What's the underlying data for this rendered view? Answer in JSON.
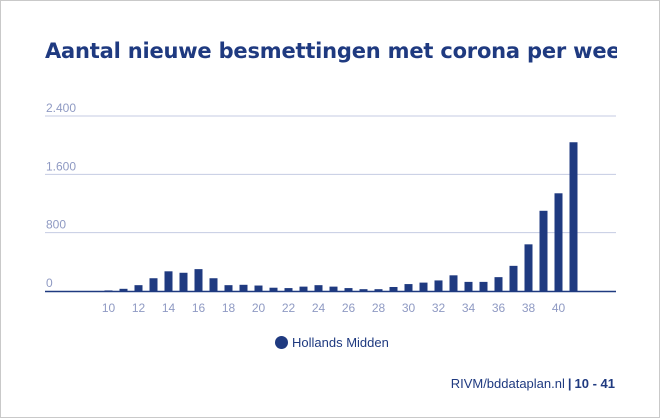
{
  "chart_data": {
    "type": "bar",
    "title": "Aantal nieuwe besmettingen met corona per week in Hollands Midden",
    "xlabel": "",
    "ylabel": "",
    "ylim": [
      0,
      2400
    ],
    "y_ticks": [
      {
        "value": 0,
        "label": "0"
      },
      {
        "value": 800,
        "label": "800"
      },
      {
        "value": 1600,
        "label": "1.600"
      },
      {
        "value": 2400,
        "label": "2.400"
      }
    ],
    "x_tick_labels": [
      "10",
      "12",
      "14",
      "16",
      "18",
      "20",
      "22",
      "24",
      "26",
      "28",
      "30",
      "32",
      "34",
      "36",
      "38",
      "40"
    ],
    "categories": [
      "9",
      "10",
      "11",
      "12",
      "13",
      "14",
      "15",
      "16",
      "17",
      "18",
      "19",
      "20",
      "21",
      "22",
      "23",
      "24",
      "25",
      "26",
      "27",
      "28",
      "29",
      "30",
      "31",
      "32",
      "33",
      "34",
      "35",
      "36",
      "37",
      "38",
      "39",
      "40",
      "41"
    ],
    "series": [
      {
        "name": "Hollands Midden",
        "color": "#1f3a80",
        "values": [
          0,
          8,
          30,
          80,
          175,
          270,
          250,
          300,
          175,
          80,
          85,
          75,
          45,
          40,
          60,
          80,
          60,
          40,
          25,
          25,
          55,
          95,
          115,
          145,
          215,
          125,
          125,
          190,
          345,
          640,
          1100,
          1340,
          2040
        ]
      }
    ],
    "grid": true,
    "legend_position": "bottom"
  },
  "footer": {
    "source": "RIVM/bddataplan.nl",
    "separator": "|",
    "page": "10 - 41"
  }
}
